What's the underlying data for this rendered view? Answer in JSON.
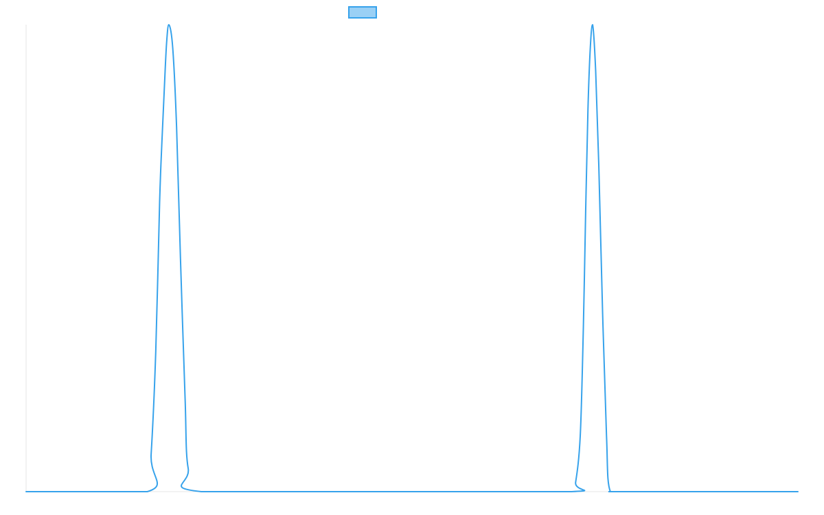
{
  "chart_data": {
    "type": "line",
    "title": "",
    "xlabel": "",
    "ylabel": "",
    "xlim": [
      0,
      100
    ],
    "ylim": [
      0,
      100
    ],
    "grid": false,
    "legend": {
      "position": "top-center",
      "entries": [
        {
          "name": "",
          "color": "#36a2eb",
          "fill": "#9ad0f5"
        }
      ]
    },
    "series": [
      {
        "name": "",
        "color": "#36a2eb",
        "x": [
          0,
          15.7,
          16.2,
          16.8,
          17.3,
          17.6,
          17.9,
          18.2,
          18.5,
          19.0,
          19.5,
          20.0,
          20.6,
          21.0,
          22.7,
          50.0,
          70.7,
          71.2,
          71.8,
          72.2,
          72.5,
          72.8,
          73.1,
          73.4,
          73.8,
          74.2,
          74.7,
          75.2,
          75.7,
          78.0,
          100
        ],
        "values": [
          0,
          0,
          8,
          30,
          62,
          75,
          86,
          96,
          100,
          95,
          78,
          50,
          20,
          5,
          0,
          0,
          0,
          2,
          12,
          35,
          60,
          82,
          95,
          100,
          90,
          70,
          38,
          12,
          0,
          0,
          0
        ]
      }
    ]
  }
}
